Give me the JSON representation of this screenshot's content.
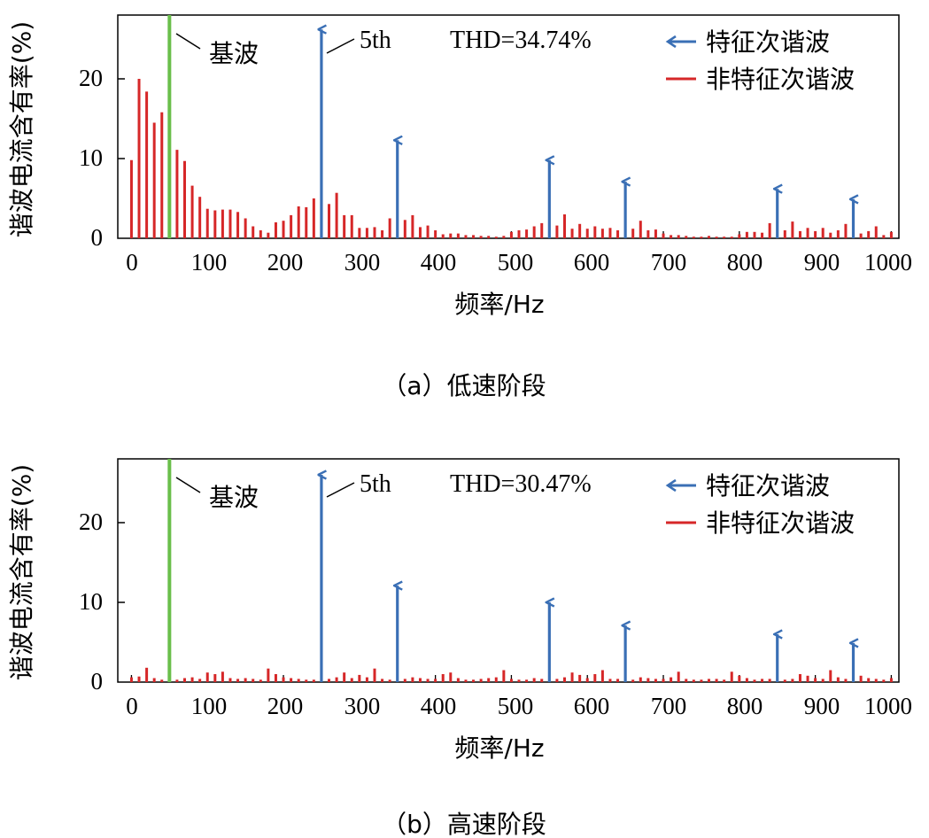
{
  "colors": {
    "characteristic": "#3a6fb5",
    "non_characteristic": "#d62728",
    "fundamental": "#6abf4b",
    "axis": "#000000"
  },
  "chart_data": [
    {
      "type": "bar",
      "caption": "（a）低速阶段",
      "thd_label": "THD=34.74%",
      "xlabel": "频率/Hz",
      "ylabel": "谐波电流含有率(%)",
      "xlim": [
        -18,
        1010
      ],
      "ylim": [
        0,
        28
      ],
      "xticks": [
        0,
        100,
        200,
        300,
        400,
        500,
        600,
        700,
        800,
        900,
        1000
      ],
      "yticks": [
        0,
        10,
        20
      ],
      "legend": [
        "特征次谐波",
        "非特征次谐波"
      ],
      "fundamental": {
        "freq": 50,
        "label": "基波"
      },
      "annotation": {
        "freq": 250,
        "label": "5th"
      },
      "characteristic_series": {
        "name": "特征次谐波",
        "freqs": [
          250,
          350,
          550,
          650,
          850,
          950
        ],
        "values": [
          26.2,
          12.3,
          9.8,
          7.1,
          6.2,
          4.9
        ]
      },
      "noncharacteristic_series": {
        "name": "非特征次谐波",
        "freqs": [
          0,
          10,
          20,
          30,
          40,
          60,
          70,
          80,
          90,
          100,
          110,
          120,
          130,
          140,
          150,
          160,
          170,
          180,
          190,
          200,
          210,
          220,
          230,
          240,
          260,
          270,
          280,
          290,
          300,
          310,
          320,
          330,
          340,
          360,
          370,
          380,
          390,
          400,
          410,
          420,
          430,
          440,
          450,
          460,
          470,
          480,
          490,
          500,
          510,
          520,
          530,
          540,
          560,
          570,
          580,
          590,
          600,
          610,
          620,
          630,
          640,
          660,
          670,
          680,
          690,
          700,
          710,
          720,
          730,
          740,
          750,
          760,
          770,
          780,
          790,
          800,
          810,
          820,
          830,
          840,
          860,
          870,
          880,
          890,
          900,
          910,
          920,
          930,
          940,
          960,
          970,
          980,
          990,
          1000
        ],
        "values": [
          9.8,
          20.0,
          18.4,
          14.5,
          15.8,
          11.1,
          9.7,
          6.6,
          5.2,
          3.7,
          3.5,
          3.6,
          3.6,
          3.3,
          2.5,
          1.5,
          1.0,
          0.7,
          2.0,
          2.2,
          2.9,
          4.0,
          3.9,
          5.0,
          4.3,
          5.7,
          2.9,
          2.9,
          1.3,
          1.3,
          1.4,
          1.0,
          2.5,
          2.3,
          2.9,
          1.4,
          1.6,
          1.0,
          0.5,
          0.6,
          0.6,
          0.4,
          0.4,
          0.3,
          0.3,
          0.2,
          0.3,
          0.8,
          1.0,
          1.1,
          1.5,
          1.9,
          1.6,
          3.0,
          1.2,
          1.8,
          1.2,
          1.5,
          1.2,
          1.3,
          1.0,
          1.2,
          2.2,
          1.0,
          1.1,
          0.6,
          0.4,
          0.4,
          0.3,
          0.2,
          0.2,
          0.3,
          0.2,
          0.2,
          0.2,
          0.5,
          0.8,
          0.8,
          0.7,
          1.9,
          1.0,
          2.1,
          0.9,
          1.3,
          0.9,
          1.3,
          0.7,
          1.0,
          1.8,
          0.6,
          0.9,
          1.5,
          0.4,
          0.8
        ]
      }
    },
    {
      "type": "bar",
      "caption": "（b）高速阶段",
      "thd_label": "THD=30.47%",
      "xlabel": "频率/Hz",
      "ylabel": "谐波电流含有率(%)",
      "xlim": [
        -18,
        1010
      ],
      "ylim": [
        0,
        28
      ],
      "xticks": [
        0,
        100,
        200,
        300,
        400,
        500,
        600,
        700,
        800,
        900,
        1000
      ],
      "yticks": [
        0,
        10,
        20
      ],
      "legend": [
        "特征次谐波",
        "非特征次谐波"
      ],
      "fundamental": {
        "freq": 50,
        "label": "基波"
      },
      "annotation": {
        "freq": 250,
        "label": "5th"
      },
      "characteristic_series": {
        "name": "特征次谐波",
        "freqs": [
          250,
          350,
          550,
          650,
          850,
          950
        ],
        "values": [
          26.0,
          12.1,
          10.0,
          7.1,
          6.0,
          4.9
        ]
      },
      "noncharacteristic_series": {
        "name": "非特征次谐波",
        "freqs": [
          0,
          10,
          20,
          30,
          40,
          60,
          70,
          80,
          90,
          100,
          110,
          120,
          130,
          140,
          150,
          160,
          170,
          180,
          190,
          200,
          210,
          220,
          230,
          240,
          260,
          270,
          280,
          290,
          300,
          310,
          320,
          330,
          340,
          360,
          370,
          380,
          390,
          400,
          410,
          420,
          430,
          440,
          450,
          460,
          470,
          480,
          490,
          500,
          510,
          520,
          530,
          540,
          560,
          570,
          580,
          590,
          600,
          610,
          620,
          630,
          640,
          660,
          670,
          680,
          690,
          700,
          710,
          720,
          730,
          740,
          750,
          760,
          770,
          780,
          790,
          800,
          810,
          820,
          830,
          840,
          860,
          870,
          880,
          890,
          900,
          910,
          920,
          930,
          940,
          960,
          970,
          980,
          990,
          1000
        ],
        "values": [
          0.6,
          0.7,
          1.8,
          0.5,
          0.3,
          0.3,
          0.5,
          0.6,
          0.4,
          1.2,
          1.0,
          1.3,
          0.5,
          0.4,
          0.5,
          0.4,
          0.3,
          1.7,
          1.0,
          0.6,
          0.5,
          0.4,
          0.3,
          0.3,
          0.4,
          0.6,
          1.2,
          0.5,
          0.9,
          0.6,
          1.7,
          0.4,
          0.3,
          0.4,
          0.6,
          0.5,
          0.4,
          0.4,
          1.0,
          1.2,
          0.5,
          0.3,
          0.3,
          0.4,
          0.5,
          0.6,
          1.5,
          0.4,
          0.3,
          0.3,
          0.5,
          0.4,
          0.4,
          0.6,
          1.2,
          0.9,
          0.5,
          1.0,
          1.5,
          0.4,
          0.4,
          0.3,
          0.6,
          0.5,
          0.4,
          0.4,
          0.6,
          1.3,
          0.4,
          0.3,
          0.3,
          0.4,
          0.4,
          0.3,
          1.3,
          0.8,
          0.5,
          0.3,
          0.4,
          0.4,
          0.3,
          0.4,
          1.0,
          0.8,
          0.5,
          0.4,
          1.5,
          0.6,
          0.4,
          0.8,
          0.5,
          0.4,
          0.3,
          0.5
        ]
      }
    }
  ]
}
